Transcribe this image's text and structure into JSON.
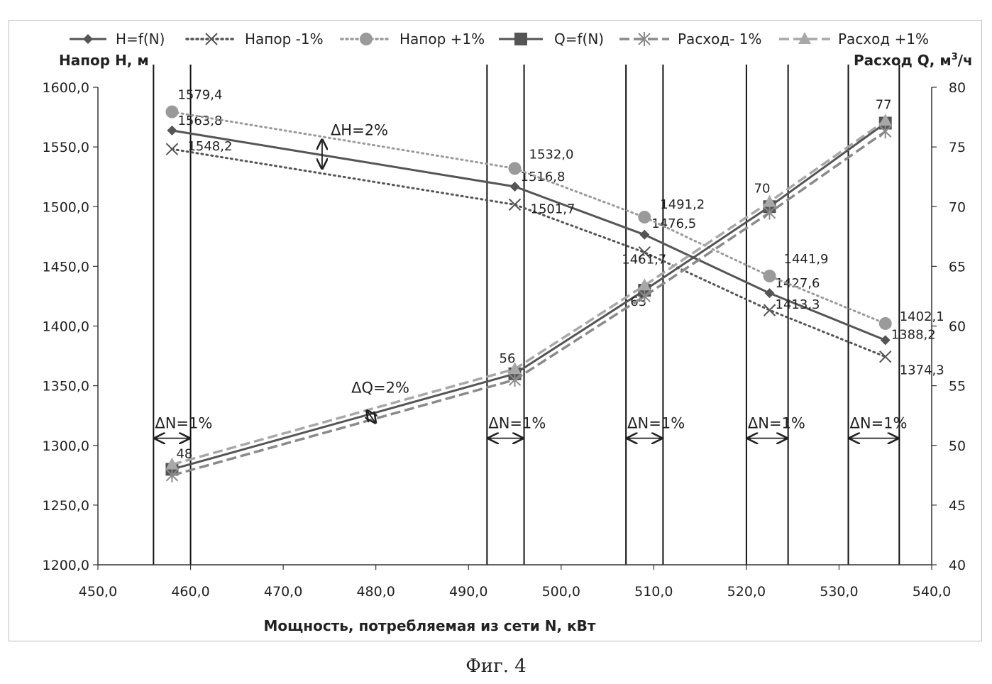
{
  "chart_data": {
    "type": "line",
    "caption": "Фиг. 4",
    "xlabel": "Мощность, потребляемая из сети N, кВт",
    "ylabel_left": "Напор H, м",
    "ylabel_right_prefix": "Расход Q, м",
    "ylabel_right_sup": "3",
    "ylabel_right_suffix": "/ч",
    "xlim": [
      450,
      540
    ],
    "ylim_left": [
      1200,
      1600
    ],
    "ylim_right": [
      40,
      80
    ],
    "x_ticks": [
      "450,0",
      "460,0",
      "470,0",
      "480,0",
      "490,0",
      "500,0",
      "510,0",
      "520,0",
      "530,0",
      "540,0"
    ],
    "y_left_ticks": [
      "1200,0",
      "1250,0",
      "1300,0",
      "1350,0",
      "1400,0",
      "1450,0",
      "1500,0",
      "1550,0",
      "1600,0"
    ],
    "y_right_ticks": [
      "40",
      "45",
      "50",
      "55",
      "60",
      "65",
      "70",
      "75",
      "80"
    ],
    "grid": false,
    "legend_position": "top",
    "series": [
      {
        "name": "H=f(N)",
        "axis": "left",
        "style": "solid",
        "marker": "diamond",
        "color": "#555555",
        "x": [
          458,
          495,
          509,
          522.5,
          535
        ],
        "y": [
          1563.8,
          1516.8,
          1476.5,
          1427.6,
          1388.2
        ],
        "labels": [
          "1563,8",
          "1516,8",
          "1476,5",
          "1427,6",
          "1388,2"
        ]
      },
      {
        "name": "Напор -1%",
        "axis": "left",
        "style": "dotted",
        "marker": "x",
        "color": "#555555",
        "x": [
          458,
          495,
          509,
          522.5,
          535
        ],
        "y": [
          1548.2,
          1501.7,
          1461.7,
          1413.3,
          1374.3
        ],
        "labels": [
          "1548,2",
          "1501,7",
          "1461,7",
          "1413,3",
          "1374,3"
        ]
      },
      {
        "name": "Напор +1%",
        "axis": "left",
        "style": "dotted",
        "marker": "circle",
        "color": "#9a9a9a",
        "x": [
          458,
          495,
          509,
          522.5,
          535
        ],
        "y": [
          1579.4,
          1532.0,
          1491.2,
          1441.9,
          1402.1
        ],
        "labels": [
          "1579,4",
          "1532,0",
          "1491,2",
          "1441,9",
          "1402,1"
        ]
      },
      {
        "name": "Q=f(N)",
        "axis": "right",
        "style": "solid",
        "marker": "square",
        "color": "#555555",
        "x": [
          458,
          495,
          509,
          522.5,
          535
        ],
        "y": [
          48,
          56,
          63,
          70,
          77
        ],
        "labels": [
          "48",
          "56",
          "63",
          "70",
          "77"
        ]
      },
      {
        "name": "Расход- 1%",
        "axis": "right",
        "style": "dashed",
        "marker": "asterisk",
        "color": "#8a8a8a",
        "x": [
          458,
          495,
          509,
          522.5,
          535
        ],
        "y": [
          47.5,
          55.5,
          62.5,
          69.5,
          76.3
        ],
        "labels": []
      },
      {
        "name": "Расход +1%",
        "axis": "right",
        "style": "dashed",
        "marker": "triangle",
        "color": "#a8a8a8",
        "x": [
          458,
          495,
          509,
          522.5,
          535
        ],
        "y": [
          48.4,
          56.4,
          63.4,
          70.4,
          77.2
        ],
        "labels": []
      }
    ],
    "vertical_lines": [
      456,
      460,
      492,
      496,
      507,
      511,
      520,
      524.5,
      531,
      536.5
    ],
    "annotations": {
      "dH": "ΔH=2%",
      "dQ": "ΔQ=2%",
      "dN": [
        "ΔN=1%",
        "ΔN=1%",
        "ΔN=1%",
        "ΔN=1%",
        "ΔN=1%"
      ]
    }
  }
}
